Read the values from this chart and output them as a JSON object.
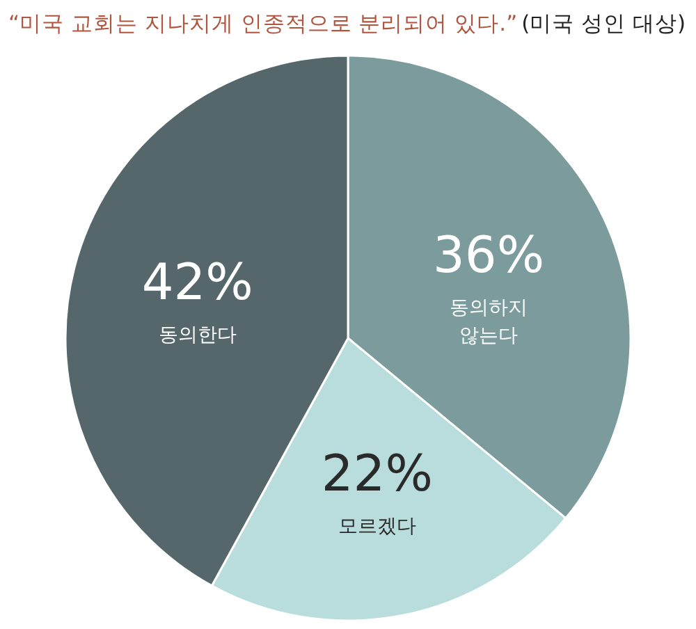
{
  "chart_data": {
    "type": "pie",
    "title": "“미국 교회는 지나치게 인종적으로 분리되어 있다.”",
    "subtitle": "(미국 성인 대상)",
    "categories": [
      "동의하지 않는다",
      "모르겠다",
      "동의한다"
    ],
    "values": [
      36,
      22,
      42
    ],
    "colors": [
      "#7b9b9d",
      "#b9dcdc",
      "#56676c"
    ],
    "value_labels": [
      "36%",
      "22%",
      "42%"
    ]
  }
}
